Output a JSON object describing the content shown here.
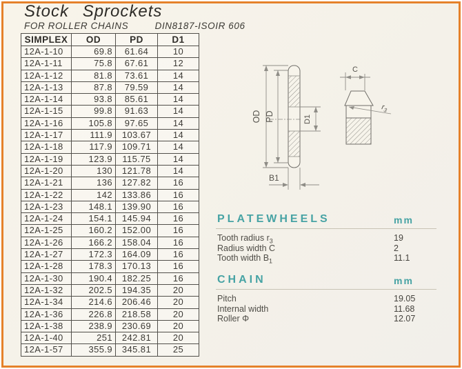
{
  "page": {
    "title": "Stock Sprockets",
    "subtitle": "FOR ROLLER CHAINS",
    "standard": "DIN8187-ISOIR 606"
  },
  "table": {
    "headers": [
      "SIMPLEX",
      "OD",
      "PD",
      "D1"
    ],
    "rows": [
      [
        "12A-1-10",
        "69.8",
        "61.64",
        "10"
      ],
      [
        "12A-1-11",
        "75.8",
        "67.61",
        "12"
      ],
      [
        "12A-1-12",
        "81.8",
        "73.61",
        "14"
      ],
      [
        "12A-1-13",
        "87.8",
        "79.59",
        "14"
      ],
      [
        "12A-1-14",
        "93.8",
        "85.61",
        "14"
      ],
      [
        "12A-1-15",
        "99.8",
        "91.63",
        "14"
      ],
      [
        "12A-1-16",
        "105.8",
        "97.65",
        "14"
      ],
      [
        "12A-1-17",
        "111.9",
        "103.67",
        "14"
      ],
      [
        "12A-1-18",
        "117.9",
        "109.71",
        "14"
      ],
      [
        "12A-1-19",
        "123.9",
        "115.75",
        "14"
      ],
      [
        "12A-1-20",
        "130",
        "121.78",
        "14"
      ],
      [
        "12A-1-21",
        "136",
        "127.82",
        "16"
      ],
      [
        "12A-1-22",
        "142",
        "133.86",
        "16"
      ],
      [
        "12A-1-23",
        "148.1",
        "139.90",
        "16"
      ],
      [
        "12A-1-24",
        "154.1",
        "145.94",
        "16"
      ],
      [
        "12A-1-25",
        "160.2",
        "152.00",
        "16"
      ],
      [
        "12A-1-26",
        "166.2",
        "158.04",
        "16"
      ],
      [
        "12A-1-27",
        "172.3",
        "164.09",
        "16"
      ],
      [
        "12A-1-28",
        "178.3",
        "170.13",
        "16"
      ],
      [
        "12A-1-30",
        "190.4",
        "182.25",
        "16"
      ],
      [
        "12A-1-32",
        "202.5",
        "194.35",
        "20"
      ],
      [
        "12A-1-34",
        "214.6",
        "206.46",
        "20"
      ],
      [
        "12A-1-36",
        "226.8",
        "218.58",
        "20"
      ],
      [
        "12A-1-38",
        "238.9",
        "230.69",
        "20"
      ],
      [
        "12A-1-40",
        "251",
        "242.81",
        "20"
      ],
      [
        "12A-1-57",
        "355.9",
        "345.81",
        "25"
      ]
    ]
  },
  "platewheels": {
    "title": "PLATEWHEELS",
    "unit": "mm",
    "rows": [
      {
        "label": "Tooth radius r",
        "sub": "3",
        "value": "19"
      },
      {
        "label": "Radius width C",
        "sub": "",
        "value": "2"
      },
      {
        "label": "Tooth width B",
        "sub": "1",
        "value": "11.1"
      }
    ]
  },
  "chain": {
    "title": "CHAIN",
    "unit": "mm",
    "rows": [
      {
        "label": "Pitch",
        "sub": "",
        "value": "19.05"
      },
      {
        "label": "Internal width",
        "sub": "",
        "value": "11.68"
      },
      {
        "label": "Roller Φ",
        "sub": "",
        "value": "12.07"
      }
    ]
  },
  "drawing": {
    "od": "OD",
    "pd": "PD",
    "d1": "D1",
    "b1": "B1",
    "c": "C",
    "r": "r",
    "r_sub": "3"
  },
  "colors": {
    "accent_teal": "#47A3A4",
    "frame_orange": "#E5812A"
  }
}
